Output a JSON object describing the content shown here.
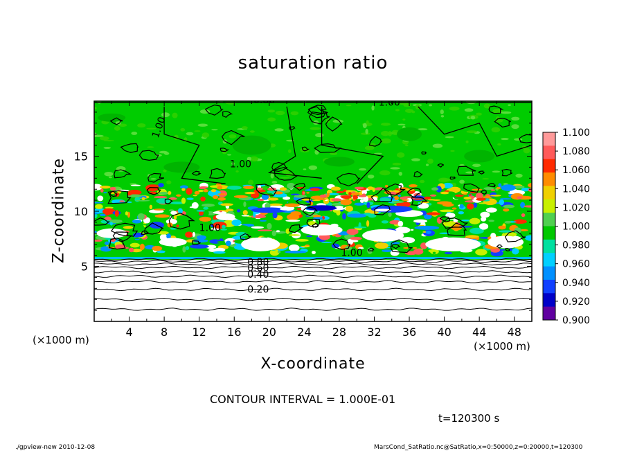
{
  "chart_data": {
    "type": "heatmap",
    "title": "saturation ratio",
    "xlabel": "X-coordinate",
    "ylabel": "Z-coordinate",
    "x_unit": "(×1000 m)",
    "y_unit": "(×1000 m)",
    "xlim": [
      0,
      50
    ],
    "ylim": [
      0,
      20
    ],
    "x_ticks": [
      "4",
      "8",
      "12",
      "16",
      "20",
      "24",
      "28",
      "32",
      "36",
      "40",
      "44",
      "48"
    ],
    "y_ticks": [
      "5",
      "10",
      "15"
    ],
    "colorbar": {
      "labels": [
        "1.100",
        "1.080",
        "1.060",
        "1.040",
        "1.020",
        "1.000",
        "0.980",
        "0.960",
        "0.940",
        "0.920",
        "0.900"
      ],
      "colors": [
        "#ff9a9a",
        "#ff5a5a",
        "#ff2a00",
        "#ff8c00",
        "#f0d000",
        "#c8f000",
        "#50d050",
        "#00c800",
        "#00e0a0",
        "#00d0ff",
        "#0090ff",
        "#1040ff",
        "#0000c8",
        "#6000a0"
      ]
    },
    "contour_labels": [
      "0.80",
      "1.00",
      "1.00",
      "1.00",
      "1.00",
      "1.00",
      "0.80",
      "0.60",
      "0.40",
      "0.20"
    ],
    "contour_interval": "CONTOUR INTERVAL = 1.000E-01",
    "time": "t=120300 s"
  },
  "footer": {
    "left": "./gpview-new   2010-12-08",
    "right": "MarsCond_SatRatio.nc@SatRatio,x=0:50000,z=0:20000,t=120300"
  }
}
